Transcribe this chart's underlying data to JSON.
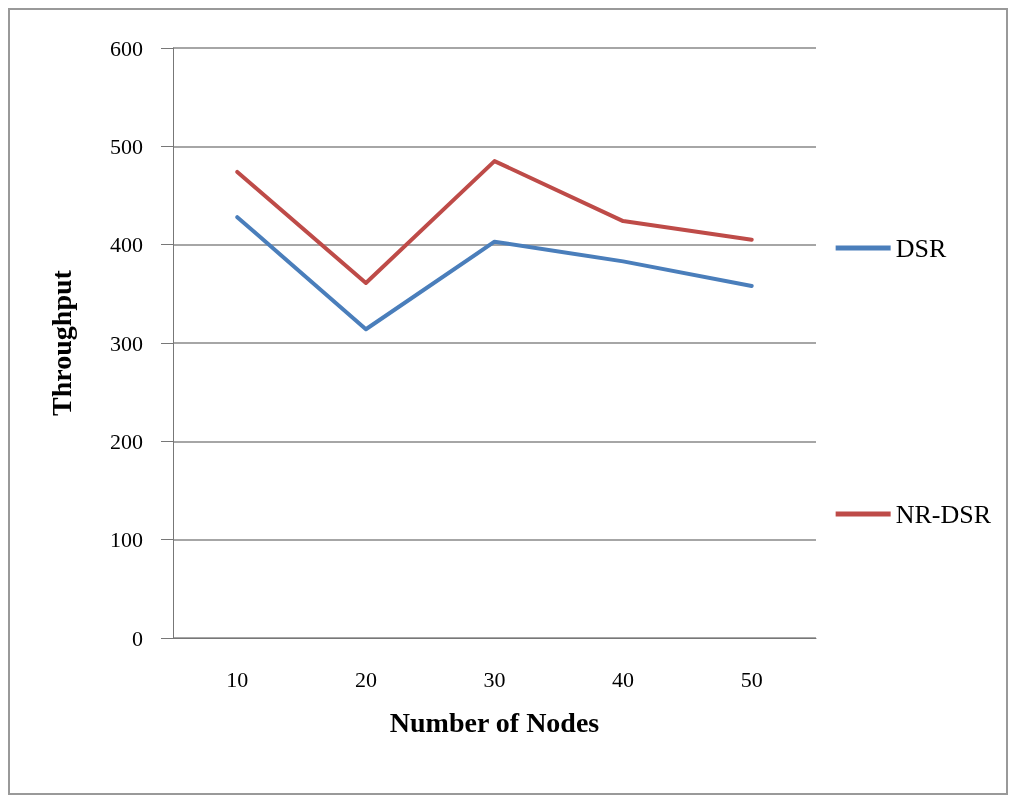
{
  "chart_data": {
    "type": "line",
    "xlabel": "Number of Nodes",
    "ylabel": "Throughput",
    "categories": [
      "10",
      "20",
      "30",
      "40",
      "50"
    ],
    "series": [
      {
        "name": "DSR",
        "color": "#4a7ebb",
        "values": [
          428,
          314,
          403,
          383,
          358
        ]
      },
      {
        "name": "NR-DSR",
        "color": "#be4b48",
        "values": [
          474,
          361,
          485,
          424,
          405
        ]
      }
    ],
    "ylim": [
      0,
      600
    ],
    "yticks": [
      0,
      100,
      200,
      300,
      400,
      500,
      600
    ],
    "grid": "y",
    "legend": "right",
    "marker": "none",
    "line_style": "solid"
  }
}
